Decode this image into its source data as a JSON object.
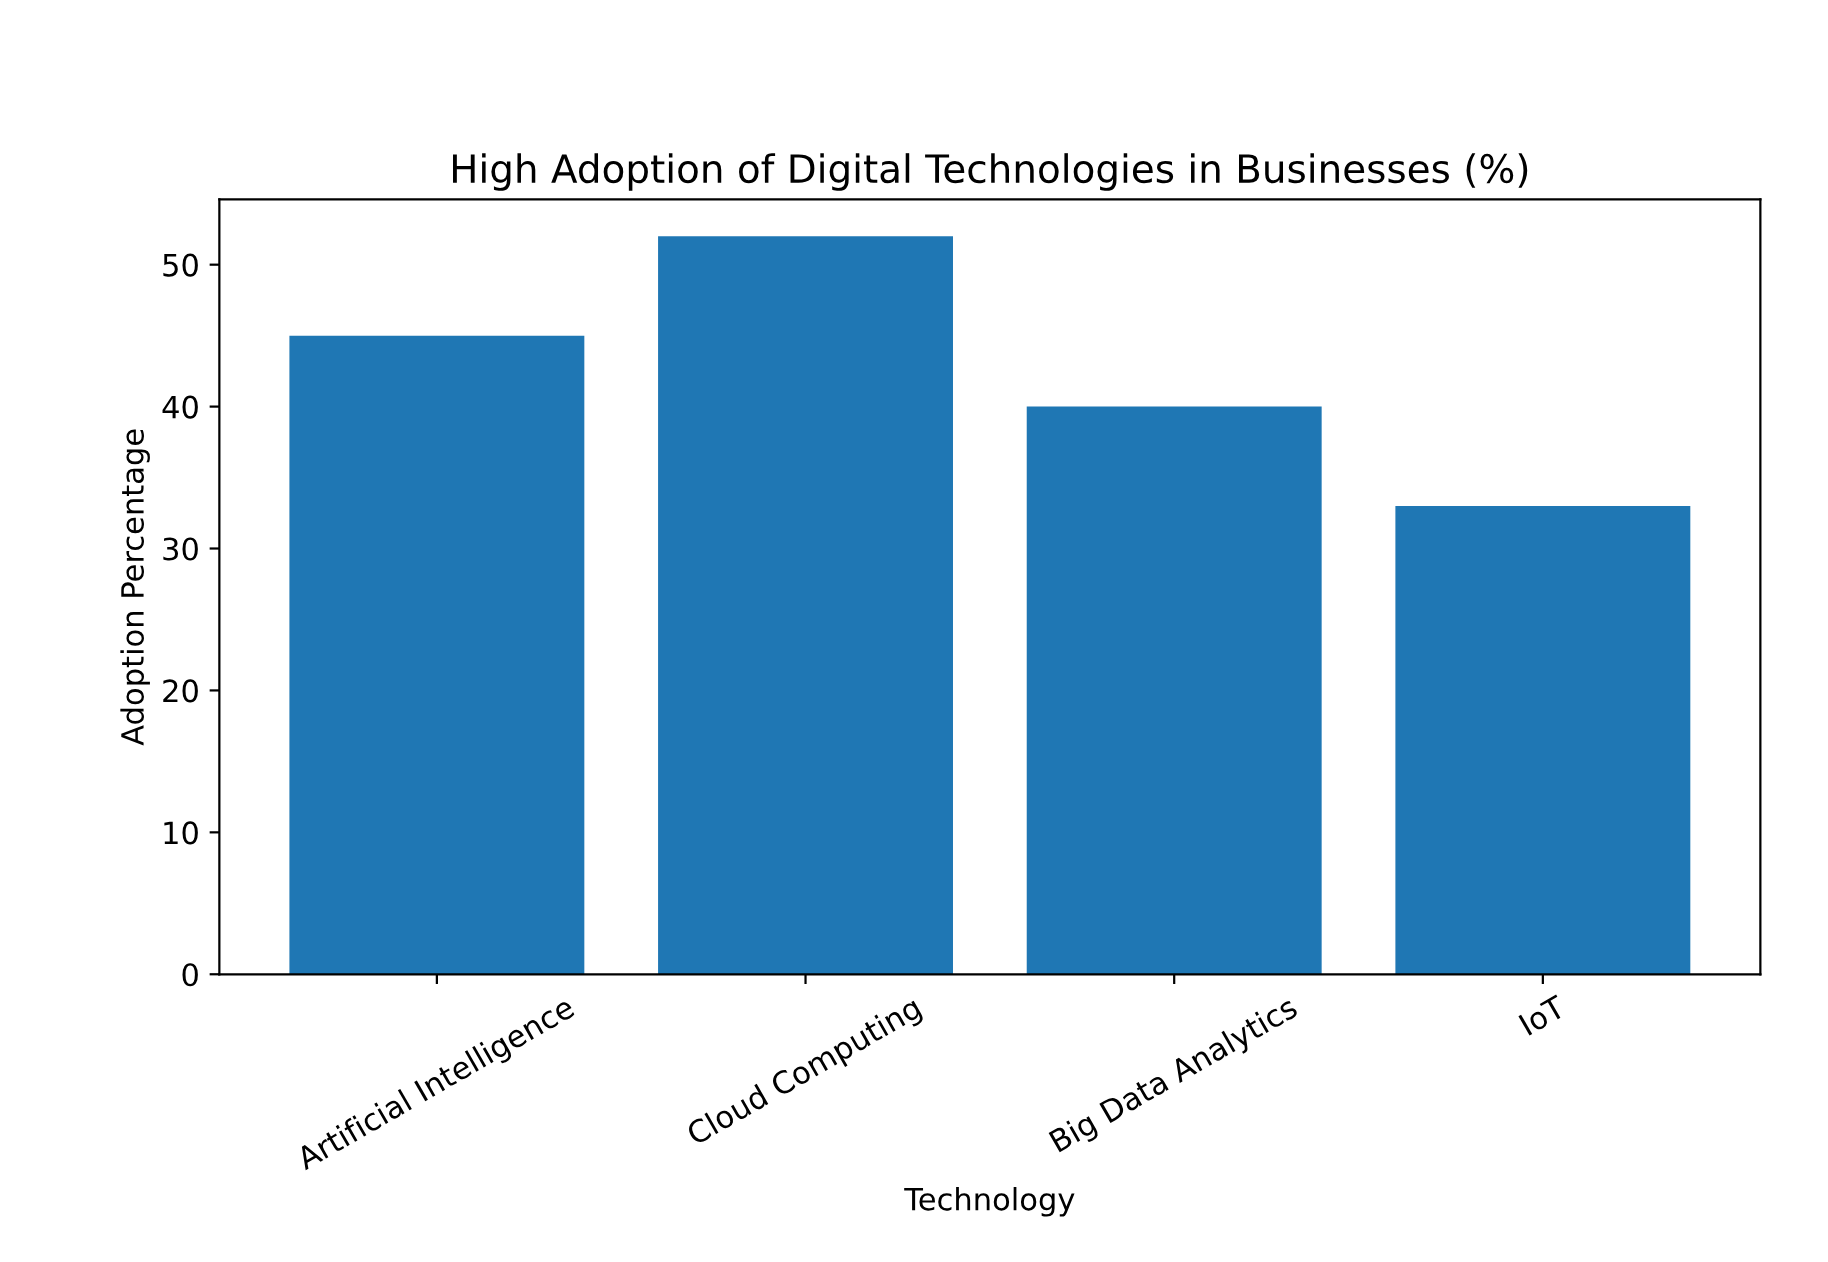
{
  "chart_data": {
    "type": "bar",
    "title": "High Adoption of Digital Technologies in Businesses (%)",
    "xlabel": "Technology",
    "ylabel": "Adoption Percentage",
    "categories": [
      "Artificial Intelligence",
      "Cloud Computing",
      "Big Data Analytics",
      "IoT"
    ],
    "values": [
      45,
      52,
      40,
      33
    ],
    "color": "#1f77b4",
    "ylim": [
      0,
      54.6
    ],
    "yticks": [
      0,
      10,
      20,
      30,
      40,
      50
    ],
    "grid": false,
    "legend": false
  }
}
